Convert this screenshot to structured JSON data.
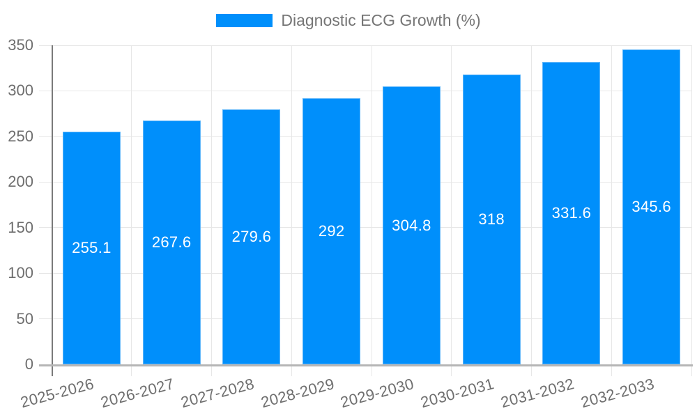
{
  "legend": {
    "label": "Diagnostic ECG Growth (%)",
    "marker_color": "#008FFB"
  },
  "chart_data": {
    "type": "bar",
    "title": "Diagnostic ECG Growth (%)",
    "categories": [
      "2025-2026",
      "2026-2027",
      "2027-2028",
      "2028-2029",
      "2029-2030",
      "2030-2031",
      "2031-2032",
      "2032-2033"
    ],
    "values": [
      255.1,
      267.6,
      279.6,
      292,
      304.8,
      318,
      331.6,
      345.6
    ],
    "value_labels": [
      "255.1",
      "267.6",
      "279.6",
      "292",
      "304.8",
      "318",
      "331.6",
      "345.6"
    ],
    "series_name": "Diagnostic ECG Growth (%)",
    "xlabel": "",
    "ylabel": "",
    "ylim": [
      0,
      350
    ],
    "yticks": [
      0,
      50,
      100,
      150,
      200,
      250,
      300,
      350
    ],
    "grid": true,
    "legend_position": "top",
    "bar_color": "#008FFB",
    "value_label_color": "#ffffff"
  },
  "colors": {
    "bar": "#008FFB",
    "grid": "#e7e7e7",
    "y_axis_line": "#7a7a7a",
    "x_axis_line": "#b6b6b6",
    "tick_text": "#6e6e6e",
    "legend_text": "#757575",
    "value_text": "#ffffff",
    "background": "#ffffff"
  }
}
